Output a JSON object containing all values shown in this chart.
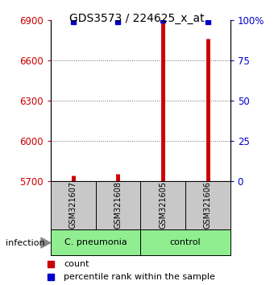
{
  "title": "GDS3573 / 224625_x_at",
  "samples": [
    "GSM321607",
    "GSM321608",
    "GSM321605",
    "GSM321606"
  ],
  "count_values": [
    5742,
    5755,
    6900,
    6762
  ],
  "percentile_values": [
    99,
    99,
    100,
    99
  ],
  "ylim_left": [
    5700,
    6900
  ],
  "ylim_right": [
    0,
    100
  ],
  "yticks_left": [
    5700,
    6000,
    6300,
    6600,
    6900
  ],
  "yticks_right": [
    0,
    25,
    50,
    75,
    100
  ],
  "bar_color": "#cc0000",
  "percentile_color": "#0000cc",
  "background_color": "#ffffff",
  "sample_box_color": "#c8c8c8",
  "grid_color": "#666666",
  "left_tick_color": "#cc0000",
  "right_tick_color": "#0000cc",
  "group1_label": "C. pneumonia",
  "group2_label": "control",
  "group_color": "#90ee90",
  "group_label": "infection"
}
